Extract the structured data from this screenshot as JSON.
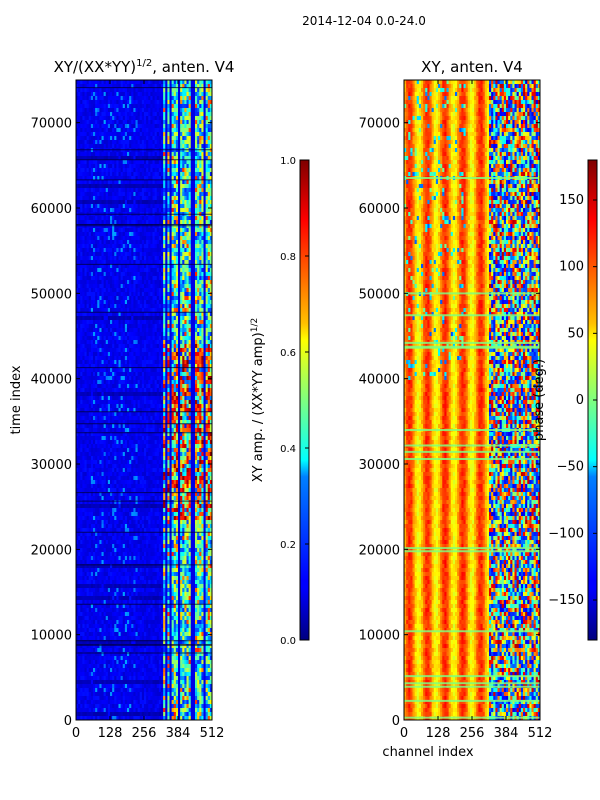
{
  "suptitle": "2014-12-04 0.0-24.0",
  "chart_data": [
    {
      "type": "heatmap",
      "title": "XY/(XX*YY)^1/2, anten. V4",
      "title_main": "XY/(XX*YY)",
      "title_exp": "1/2",
      "title_rest": ", anten. V4",
      "xlabel": "",
      "ylabel": "time index",
      "xlim": [
        0,
        512
      ],
      "ylim": [
        0,
        75000
      ],
      "x_ticks": [
        0,
        128,
        256,
        384,
        512
      ],
      "y_ticks": [
        0,
        10000,
        20000,
        30000,
        40000,
        50000,
        60000,
        70000
      ],
      "y_tick_labels": [
        "0",
        "10000",
        "20000",
        "30000",
        "40000",
        "50000",
        "60000",
        "70000"
      ],
      "colorbar": {
        "label": "XY amp. / (XX*YY amp)^1/2",
        "label_main": "XY amp. / (XX*YY amp)",
        "label_exp": "1/2",
        "range": [
          0.0,
          1.0
        ],
        "ticks": [
          0.0,
          0.2,
          0.4,
          0.6,
          0.8,
          1.0
        ],
        "tick_labels": [
          "0.0",
          "0.2",
          "0.4",
          "0.6",
          "0.8",
          "1.0"
        ],
        "colormap": "jet"
      }
    },
    {
      "type": "heatmap",
      "title": "XY, anten. V4",
      "xlabel": "channel index",
      "ylabel": "",
      "xlim": [
        0,
        512
      ],
      "ylim": [
        0,
        75000
      ],
      "x_ticks": [
        0,
        128,
        256,
        384,
        512
      ],
      "y_ticks": [
        0,
        10000,
        20000,
        30000,
        40000,
        50000,
        60000,
        70000
      ],
      "y_tick_labels": [
        "0",
        "10000",
        "20000",
        "30000",
        "40000",
        "50000",
        "60000",
        "70000"
      ],
      "colorbar": {
        "label": "phase (deg.)",
        "range": [
          -180,
          180
        ],
        "ticks": [
          -150,
          -100,
          -50,
          0,
          50,
          100,
          150
        ],
        "tick_labels": [
          "−150",
          "−100",
          "−50",
          "0",
          "50",
          "100",
          "150"
        ],
        "colormap": "jet"
      }
    }
  ]
}
